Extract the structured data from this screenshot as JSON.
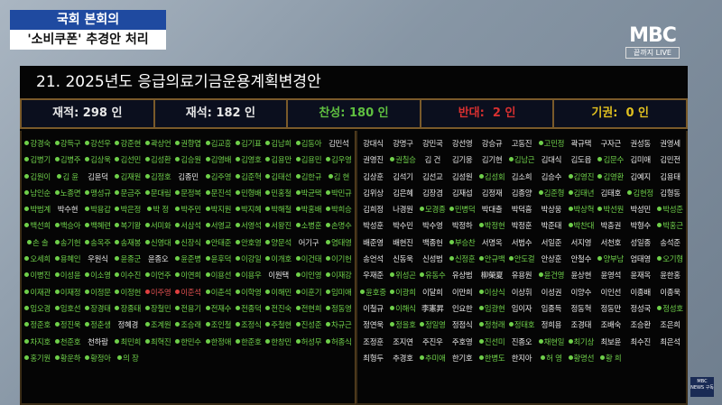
{
  "caption": {
    "line1": "국회 본회의",
    "line2": "'소비쿠폰' 추경안 처리"
  },
  "logo": {
    "brand": "MBC",
    "sub": "끝까지 LIVE"
  },
  "badge": {
    "text": "MBC NEWS 구독"
  },
  "board": {
    "title": "21. 2025년도 응급의료기금운용계획변경안",
    "stats": [
      {
        "label": "재적: 298 인",
        "color": "#e6e6e6"
      },
      {
        "label": "재석: 182 인",
        "color": "#e6e6e6"
      },
      {
        "label": "찬성: 180 인",
        "color": "#5fc040"
      },
      {
        "label": "반대:  2 인",
        "color": "#d83030"
      },
      {
        "label": "기권:  0 인",
        "color": "#e0c020"
      }
    ]
  },
  "colors": {
    "yes": "#6fd04a",
    "no": "#e04040"
  },
  "left_members": [
    [
      "g",
      "강경숙"
    ],
    [
      "g",
      "강득구"
    ],
    [
      "g",
      "강선우"
    ],
    [
      "g",
      "강준현"
    ],
    [
      "g",
      "곽상언"
    ],
    [
      "g",
      "권향엽"
    ],
    [
      "g",
      "김교흥"
    ],
    [
      "g",
      "김기표"
    ],
    [
      "g",
      "김남희"
    ],
    [
      "g",
      "김동아"
    ],
    [
      "n",
      "김민석"
    ],
    [
      "g",
      "김병기"
    ],
    [
      "g",
      "김병주"
    ],
    [
      "g",
      "김상욱"
    ],
    [
      "g",
      "김선민"
    ],
    [
      "g",
      "김성환"
    ],
    [
      "g",
      "김승원"
    ],
    [
      "g",
      "김영배"
    ],
    [
      "g",
      "김영호"
    ],
    [
      "g",
      "김용만"
    ],
    [
      "g",
      "김용민"
    ],
    [
      "g",
      "김우영"
    ],
    [
      "g",
      "김원이"
    ],
    [
      "g",
      "김 윤"
    ],
    [
      "n",
      "김윤덕"
    ],
    [
      "g",
      "김재원"
    ],
    [
      "g",
      "김정호"
    ],
    [
      "n",
      "김종민"
    ],
    [
      "g",
      "김주영"
    ],
    [
      "g",
      "김준혁"
    ],
    [
      "g",
      "김태선"
    ],
    [
      "g",
      "김한규"
    ],
    [
      "g",
      "김 현"
    ],
    [
      "g",
      "남인순"
    ],
    [
      "g",
      "노종면"
    ],
    [
      "g",
      "맹성규"
    ],
    [
      "g",
      "문금주"
    ],
    [
      "g",
      "문대림"
    ],
    [
      "g",
      "문정복"
    ],
    [
      "g",
      "문진석"
    ],
    [
      "g",
      "민형배"
    ],
    [
      "g",
      "민홍철"
    ],
    [
      "g",
      "박균택"
    ],
    [
      "g",
      "박민규"
    ],
    [
      "g",
      "박범계"
    ],
    [
      "n",
      "박수현"
    ],
    [
      "g",
      "박용갑"
    ],
    [
      "g",
      "박은정"
    ],
    [
      "g",
      "박 정"
    ],
    [
      "g",
      "박주민"
    ],
    [
      "g",
      "박지원"
    ],
    [
      "g",
      "박지혜"
    ],
    [
      "g",
      "박해철"
    ],
    [
      "g",
      "박홍배"
    ],
    [
      "g",
      "박희승"
    ],
    [
      "g",
      "백선희"
    ],
    [
      "g",
      "백승아"
    ],
    [
      "g",
      "백혜련"
    ],
    [
      "g",
      "복기왕"
    ],
    [
      "g",
      "서미화"
    ],
    [
      "g",
      "서삼석"
    ],
    [
      "g",
      "서영교"
    ],
    [
      "g",
      "서영석"
    ],
    [
      "g",
      "서왕진"
    ],
    [
      "g",
      "소병훈"
    ],
    [
      "g",
      "손명수"
    ],
    [
      "g",
      "손 솔"
    ],
    [
      "g",
      "송기헌"
    ],
    [
      "g",
      "송옥주"
    ],
    [
      "g",
      "송재봉"
    ],
    [
      "g",
      "신영대"
    ],
    [
      "g",
      "신장식"
    ],
    [
      "g",
      "안태준"
    ],
    [
      "g",
      "안호영"
    ],
    [
      "g",
      "양문석"
    ],
    [
      "n",
      "어기구"
    ],
    [
      "g",
      "염태영"
    ],
    [
      "g",
      "오세희"
    ],
    [
      "g",
      "용혜인"
    ],
    [
      "n",
      "우원식"
    ],
    [
      "g",
      "윤종군"
    ],
    [
      "n",
      "윤종오"
    ],
    [
      "g",
      "윤준병"
    ],
    [
      "g",
      "윤후덕"
    ],
    [
      "g",
      "이강일"
    ],
    [
      "g",
      "이개호"
    ],
    [
      "g",
      "이건태"
    ],
    [
      "g",
      "이기헌"
    ],
    [
      "g",
      "이병진"
    ],
    [
      "g",
      "이성윤"
    ],
    [
      "g",
      "이소영"
    ],
    [
      "g",
      "이수진"
    ],
    [
      "g",
      "이언주"
    ],
    [
      "g",
      "이연희"
    ],
    [
      "g",
      "이용선"
    ],
    [
      "g",
      "이용우"
    ],
    [
      "n",
      "이원택"
    ],
    [
      "g",
      "이인영"
    ],
    [
      "g",
      "이재강"
    ],
    [
      "g",
      "이재관"
    ],
    [
      "g",
      "이재정"
    ],
    [
      "g",
      "이정문"
    ],
    [
      "g",
      "이정헌"
    ],
    [
      "r",
      "이주영"
    ],
    [
      "r",
      "이준석"
    ],
    [
      "g",
      "이춘석"
    ],
    [
      "g",
      "이학영"
    ],
    [
      "g",
      "이해민"
    ],
    [
      "g",
      "이훈기"
    ],
    [
      "g",
      "임미애"
    ],
    [
      "g",
      "임오경"
    ],
    [
      "g",
      "임호선"
    ],
    [
      "g",
      "장경태"
    ],
    [
      "g",
      "장종태"
    ],
    [
      "g",
      "장철민"
    ],
    [
      "g",
      "전용기"
    ],
    [
      "g",
      "전재수"
    ],
    [
      "g",
      "전종덕"
    ],
    [
      "g",
      "전진숙"
    ],
    [
      "g",
      "전현희"
    ],
    [
      "g",
      "정동영"
    ],
    [
      "g",
      "정준호"
    ],
    [
      "g",
      "정진욱"
    ],
    [
      "g",
      "정춘생"
    ],
    [
      "n",
      "정혜경"
    ],
    [
      "g",
      "조계원"
    ],
    [
      "g",
      "조승래"
    ],
    [
      "g",
      "조인철"
    ],
    [
      "g",
      "조정식"
    ],
    [
      "g",
      "주철현"
    ],
    [
      "g",
      "진성준"
    ],
    [
      "g",
      "차규근"
    ],
    [
      "g",
      "차지호"
    ],
    [
      "g",
      "천준호"
    ],
    [
      "n",
      "천하람"
    ],
    [
      "g",
      "최민희"
    ],
    [
      "g",
      "최혁진"
    ],
    [
      "g",
      "한민수"
    ],
    [
      "g",
      "한정애"
    ],
    [
      "g",
      "한준호"
    ],
    [
      "g",
      "한창민"
    ],
    [
      "g",
      "허성무"
    ],
    [
      "g",
      "허종식"
    ],
    [
      "g",
      "홍기원"
    ],
    [
      "g",
      "황운하"
    ],
    [
      "g",
      "황정아"
    ],
    [
      "g",
      "의 장"
    ]
  ],
  "right_members": [
    [
      "n",
      "강대식"
    ],
    [
      "n",
      "강명구"
    ],
    [
      "n",
      "강민국"
    ],
    [
      "n",
      "강선영"
    ],
    [
      "n",
      "강승규"
    ],
    [
      "n",
      "고동진"
    ],
    [
      "g",
      "고민정"
    ],
    [
      "n",
      "곽규택"
    ],
    [
      "n",
      "구자근"
    ],
    [
      "n",
      "권성동"
    ],
    [
      "n",
      "권영세"
    ],
    [
      "n",
      "권영진"
    ],
    [
      "g",
      "권칠승"
    ],
    [
      "n",
      "김 건"
    ],
    [
      "n",
      "김기웅"
    ],
    [
      "n",
      "김기현"
    ],
    [
      "g",
      "김남근"
    ],
    [
      "n",
      "김대식"
    ],
    [
      "n",
      "김도읍"
    ],
    [
      "g",
      "김문수"
    ],
    [
      "n",
      "김미애"
    ],
    [
      "n",
      "김민전"
    ],
    [
      "n",
      "김상훈"
    ],
    [
      "n",
      "김석기"
    ],
    [
      "n",
      "김선교"
    ],
    [
      "n",
      "김성원"
    ],
    [
      "g",
      "김성회"
    ],
    [
      "n",
      "김소희"
    ],
    [
      "n",
      "김승수"
    ],
    [
      "g",
      "김영진"
    ],
    [
      "g",
      "김영환"
    ],
    [
      "n",
      "김예지"
    ],
    [
      "n",
      "김용태"
    ],
    [
      "n",
      "김위상"
    ],
    [
      "n",
      "김은혜"
    ],
    [
      "n",
      "김장겸"
    ],
    [
      "n",
      "김재섭"
    ],
    [
      "n",
      "김정재"
    ],
    [
      "n",
      "김종양"
    ],
    [
      "g",
      "김준형"
    ],
    [
      "g",
      "김태년"
    ],
    [
      "n",
      "김태호"
    ],
    [
      "g",
      "김현정"
    ],
    [
      "n",
      "김형동"
    ],
    [
      "n",
      "김희정"
    ],
    [
      "n",
      "나경원"
    ],
    [
      "g",
      "모경종"
    ],
    [
      "g",
      "민병덕"
    ],
    [
      "n",
      "박대출"
    ],
    [
      "n",
      "박덕흠"
    ],
    [
      "n",
      "박상웅"
    ],
    [
      "g",
      "박상혁"
    ],
    [
      "g",
      "박선원"
    ],
    [
      "n",
      "박성민"
    ],
    [
      "g",
      "박성준"
    ],
    [
      "n",
      "박성훈"
    ],
    [
      "n",
      "박수민"
    ],
    [
      "n",
      "박수영"
    ],
    [
      "n",
      "박정하"
    ],
    [
      "g",
      "박정현"
    ],
    [
      "n",
      "박정훈"
    ],
    [
      "n",
      "박준태"
    ],
    [
      "g",
      "박찬대"
    ],
    [
      "n",
      "박충권"
    ],
    [
      "n",
      "박형수"
    ],
    [
      "g",
      "박홍근"
    ],
    [
      "n",
      "배준영"
    ],
    [
      "n",
      "배현진"
    ],
    [
      "n",
      "백종헌"
    ],
    [
      "g",
      "부승찬"
    ],
    [
      "n",
      "서명옥"
    ],
    [
      "n",
      "서범수"
    ],
    [
      "n",
      "서일준"
    ],
    [
      "n",
      "서지영"
    ],
    [
      "n",
      "서천호"
    ],
    [
      "n",
      "성일종"
    ],
    [
      "n",
      "송석준"
    ],
    [
      "n",
      "송언석"
    ],
    [
      "n",
      "신동욱"
    ],
    [
      "n",
      "신성범"
    ],
    [
      "g",
      "신정훈"
    ],
    [
      "g",
      "안규백"
    ],
    [
      "g",
      "안도걸"
    ],
    [
      "n",
      "안상훈"
    ],
    [
      "n",
      "안철수"
    ],
    [
      "g",
      "양부남"
    ],
    [
      "n",
      "엄태영"
    ],
    [
      "g",
      "오기형"
    ],
    [
      "n",
      "우재준"
    ],
    [
      "g",
      "위성곤"
    ],
    [
      "g",
      "유동수"
    ],
    [
      "n",
      "유상범"
    ],
    [
      "n",
      "柳榮夏"
    ],
    [
      "n",
      "유용원"
    ],
    [
      "g",
      "윤건영"
    ],
    [
      "n",
      "윤상현"
    ],
    [
      "n",
      "윤영석"
    ],
    [
      "n",
      "윤재옥"
    ],
    [
      "n",
      "윤한홍"
    ],
    [
      "g",
      "윤호중"
    ],
    [
      "g",
      "이광희"
    ],
    [
      "n",
      "이달희"
    ],
    [
      "n",
      "이만희"
    ],
    [
      "g",
      "이상식"
    ],
    [
      "n",
      "이상휘"
    ],
    [
      "n",
      "이성권"
    ],
    [
      "n",
      "이양수"
    ],
    [
      "n",
      "이인선"
    ],
    [
      "n",
      "이종배"
    ],
    [
      "n",
      "이종욱"
    ],
    [
      "n",
      "이철규"
    ],
    [
      "g",
      "이해식"
    ],
    [
      "n",
      "李憲昇"
    ],
    [
      "n",
      "인요한"
    ],
    [
      "g",
      "임광현"
    ],
    [
      "n",
      "임이자"
    ],
    [
      "n",
      "임종득"
    ],
    [
      "n",
      "정동혁"
    ],
    [
      "n",
      "정동만"
    ],
    [
      "n",
      "정성국"
    ],
    [
      "g",
      "정성호"
    ],
    [
      "n",
      "정연욱"
    ],
    [
      "g",
      "정을호"
    ],
    [
      "g",
      "정일영"
    ],
    [
      "n",
      "정점식"
    ],
    [
      "g",
      "정청래"
    ],
    [
      "g",
      "정태호"
    ],
    [
      "n",
      "정희용"
    ],
    [
      "n",
      "조경태"
    ],
    [
      "n",
      "조배숙"
    ],
    [
      "n",
      "조승환"
    ],
    [
      "n",
      "조은희"
    ],
    [
      "n",
      "조정훈"
    ],
    [
      "n",
      "조지연"
    ],
    [
      "n",
      "주진우"
    ],
    [
      "n",
      "주호영"
    ],
    [
      "g",
      "진선미"
    ],
    [
      "n",
      "진종오"
    ],
    [
      "g",
      "채현일"
    ],
    [
      "g",
      "최기상"
    ],
    [
      "n",
      "최보윤"
    ],
    [
      "n",
      "최수진"
    ],
    [
      "n",
      "최은석"
    ],
    [
      "n",
      "최형두"
    ],
    [
      "n",
      "추경호"
    ],
    [
      "g",
      "추미애"
    ],
    [
      "n",
      "한기호"
    ],
    [
      "g",
      "한병도"
    ],
    [
      "n",
      "한지아"
    ],
    [
      "g",
      "허 영"
    ],
    [
      "g",
      "황명선"
    ],
    [
      "g",
      "황 희"
    ]
  ]
}
